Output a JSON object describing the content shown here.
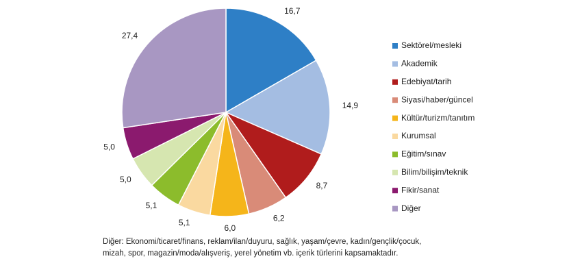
{
  "chart_data": {
    "type": "pie",
    "categories": [
      "Sektörel/mesleki",
      "Akademik",
      "Edebiyat/tarih",
      "Siyasi/haber/güncel",
      "Kültür/turizm/tanıtım",
      "Kurumsal",
      "Eğitim/sınav",
      "Bilim/bilişim/teknik",
      "Fikir/sanat",
      "Diğer"
    ],
    "values": [
      16.7,
      14.9,
      8.7,
      6.2,
      6.0,
      5.1,
      5.1,
      5.0,
      5.0,
      27.4
    ],
    "value_labels": [
      "16,7",
      "14,9",
      "8,7",
      "6,2",
      "6,0",
      "5,1",
      "5,1",
      "5,0",
      "5,0",
      "27,4"
    ],
    "colors": [
      "#2e7fc6",
      "#a4bde2",
      "#b01c1c",
      "#d98b78",
      "#f5b51a",
      "#fad9a0",
      "#8cbc2c",
      "#d6e6b0",
      "#8b1a6e",
      "#a897c2"
    ],
    "legend": "right",
    "notes": [
      "Diğer: Ekonomi/ticaret/finans, reklam/ilan/duyuru, sağlık, yaşam/çevre, kadın/gençlik/çocuk,",
      "mizah, spor, magazin/moda/alışveriş, yerel yönetim vb. içerik türlerini kapsamaktadır."
    ]
  }
}
